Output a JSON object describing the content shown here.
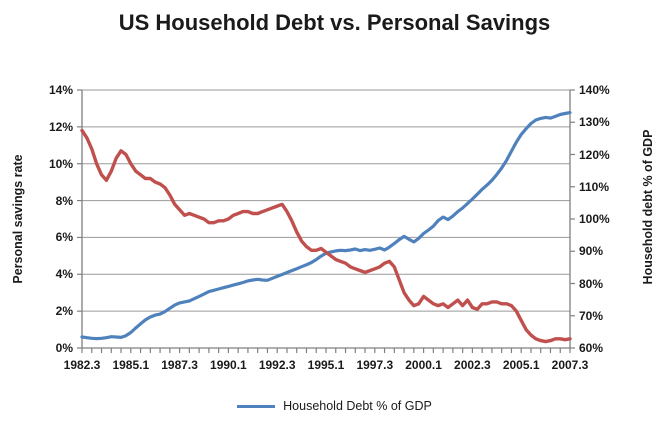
{
  "chart_data": {
    "type": "line",
    "title": "US Household Debt vs. Personal Savings",
    "grid": true,
    "legend_position": "bottom",
    "legend_entries": [
      "Household Debt % of GDP"
    ],
    "style": {
      "background": "#FFFFFF",
      "grid_color": "#9A9A9A",
      "axis_color": "#808080",
      "text_color": "#1A1A1A"
    },
    "x_axis": {
      "tick_labels": [
        "1982.3",
        "1985.1",
        "1987.3",
        "1990.1",
        "1992.3",
        "1995.1",
        "1997.3",
        "2000.1",
        "2002.3",
        "2005.1",
        "2007.3"
      ],
      "label_every_n_points": 10,
      "minor_tick_every_n_points": 2
    },
    "y_left": {
      "label": "Personal savings rate",
      "min": 0,
      "max": 14,
      "step": 2,
      "unit": "%",
      "tick_labels": [
        "0%",
        "2%",
        "4%",
        "6%",
        "8%",
        "10%",
        "12%",
        "14%"
      ]
    },
    "y_right": {
      "label": "Household debt % of GDP",
      "min": 60,
      "max": 140,
      "step": 10,
      "unit": "%",
      "tick_labels": [
        "60%",
        "70%",
        "80%",
        "90%",
        "100%",
        "110%",
        "120%",
        "130%",
        "140%"
      ]
    },
    "categories": [
      "1982.3",
      "1982.4",
      "1983.1",
      "1983.2",
      "1983.3",
      "1983.4",
      "1984.1",
      "1984.2",
      "1984.3",
      "1984.4",
      "1985.1",
      "1985.2",
      "1985.3",
      "1985.4",
      "1986.1",
      "1986.2",
      "1986.3",
      "1986.4",
      "1987.1",
      "1987.2",
      "1987.3",
      "1987.4",
      "1988.1",
      "1988.2",
      "1988.3",
      "1988.4",
      "1989.1",
      "1989.2",
      "1989.3",
      "1989.4",
      "1990.1",
      "1990.2",
      "1990.3",
      "1990.4",
      "1991.1",
      "1991.2",
      "1991.3",
      "1991.4",
      "1992.1",
      "1992.2",
      "1992.3",
      "1992.4",
      "1993.1",
      "1993.2",
      "1993.3",
      "1993.4",
      "1994.1",
      "1994.2",
      "1994.3",
      "1994.4",
      "1995.1",
      "1995.2",
      "1995.3",
      "1995.4",
      "1996.1",
      "1996.2",
      "1996.3",
      "1996.4",
      "1997.1",
      "1997.2",
      "1997.3",
      "1997.4",
      "1998.1",
      "1998.2",
      "1998.3",
      "1998.4",
      "1999.1",
      "1999.2",
      "1999.3",
      "1999.4",
      "2000.1",
      "2000.2",
      "2000.3",
      "2000.4",
      "2001.1",
      "2001.2",
      "2001.3",
      "2001.4",
      "2002.1",
      "2002.2",
      "2002.3",
      "2002.4",
      "2003.1",
      "2003.2",
      "2003.3",
      "2003.4",
      "2004.1",
      "2004.2",
      "2004.3",
      "2004.4",
      "2005.1",
      "2005.2",
      "2005.3",
      "2005.4",
      "2006.1",
      "2006.2",
      "2006.3",
      "2006.4",
      "2007.1",
      "2007.2",
      "2007.3"
    ],
    "series": [
      {
        "name": "Household Debt % of GDP",
        "axis": "right",
        "color": "#4F81BD",
        "stroke_width": 3.2,
        "values": [
          63.4,
          63.2,
          63.0,
          62.9,
          63.0,
          63.2,
          63.5,
          63.4,
          63.3,
          63.8,
          64.8,
          66.2,
          67.5,
          68.7,
          69.6,
          70.2,
          70.5,
          71.3,
          72.3,
          73.3,
          74.0,
          74.3,
          74.6,
          75.3,
          76.0,
          76.7,
          77.5,
          77.9,
          78.3,
          78.7,
          79.1,
          79.5,
          79.9,
          80.3,
          80.8,
          81.1,
          81.3,
          81.1,
          81.0,
          81.6,
          82.2,
          82.8,
          83.4,
          84.0,
          84.6,
          85.2,
          85.8,
          86.5,
          87.4,
          88.5,
          89.4,
          89.8,
          90.1,
          90.3,
          90.2,
          90.4,
          90.7,
          90.2,
          90.5,
          90.3,
          90.6,
          91.0,
          90.4,
          91.3,
          92.4,
          93.6,
          94.6,
          93.7,
          92.9,
          94.0,
          95.5,
          96.6,
          97.8,
          99.5,
          100.6,
          99.8,
          100.9,
          102.3,
          103.4,
          104.8,
          106.2,
          107.7,
          109.2,
          110.5,
          112.0,
          113.8,
          115.8,
          118.2,
          121.0,
          123.8,
          126.2,
          128.0,
          129.6,
          130.7,
          131.2,
          131.5,
          131.3,
          131.8,
          132.4,
          132.7,
          133.0
        ]
      },
      {
        "name": "Personal savings rate",
        "axis": "left",
        "color": "#C0504D",
        "stroke_width": 3.4,
        "values": [
          11.8,
          11.4,
          10.8,
          10.0,
          9.4,
          9.1,
          9.6,
          10.3,
          10.7,
          10.5,
          10.0,
          9.6,
          9.4,
          9.2,
          9.2,
          9.0,
          8.9,
          8.7,
          8.3,
          7.8,
          7.5,
          7.2,
          7.3,
          7.2,
          7.1,
          7.0,
          6.8,
          6.8,
          6.9,
          6.9,
          7.0,
          7.2,
          7.3,
          7.4,
          7.4,
          7.3,
          7.3,
          7.4,
          7.5,
          7.6,
          7.7,
          7.8,
          7.4,
          6.9,
          6.3,
          5.8,
          5.5,
          5.3,
          5.3,
          5.4,
          5.2,
          5.0,
          4.8,
          4.7,
          4.6,
          4.4,
          4.3,
          4.2,
          4.1,
          4.2,
          4.3,
          4.4,
          4.6,
          4.7,
          4.4,
          3.7,
          3.0,
          2.6,
          2.3,
          2.4,
          2.8,
          2.6,
          2.4,
          2.3,
          2.4,
          2.2,
          2.4,
          2.6,
          2.3,
          2.6,
          2.2,
          2.1,
          2.4,
          2.4,
          2.5,
          2.5,
          2.4,
          2.4,
          2.3,
          2.0,
          1.5,
          1.0,
          0.7,
          0.5,
          0.4,
          0.35,
          0.4,
          0.5,
          0.5,
          0.45,
          0.5
        ]
      }
    ]
  }
}
